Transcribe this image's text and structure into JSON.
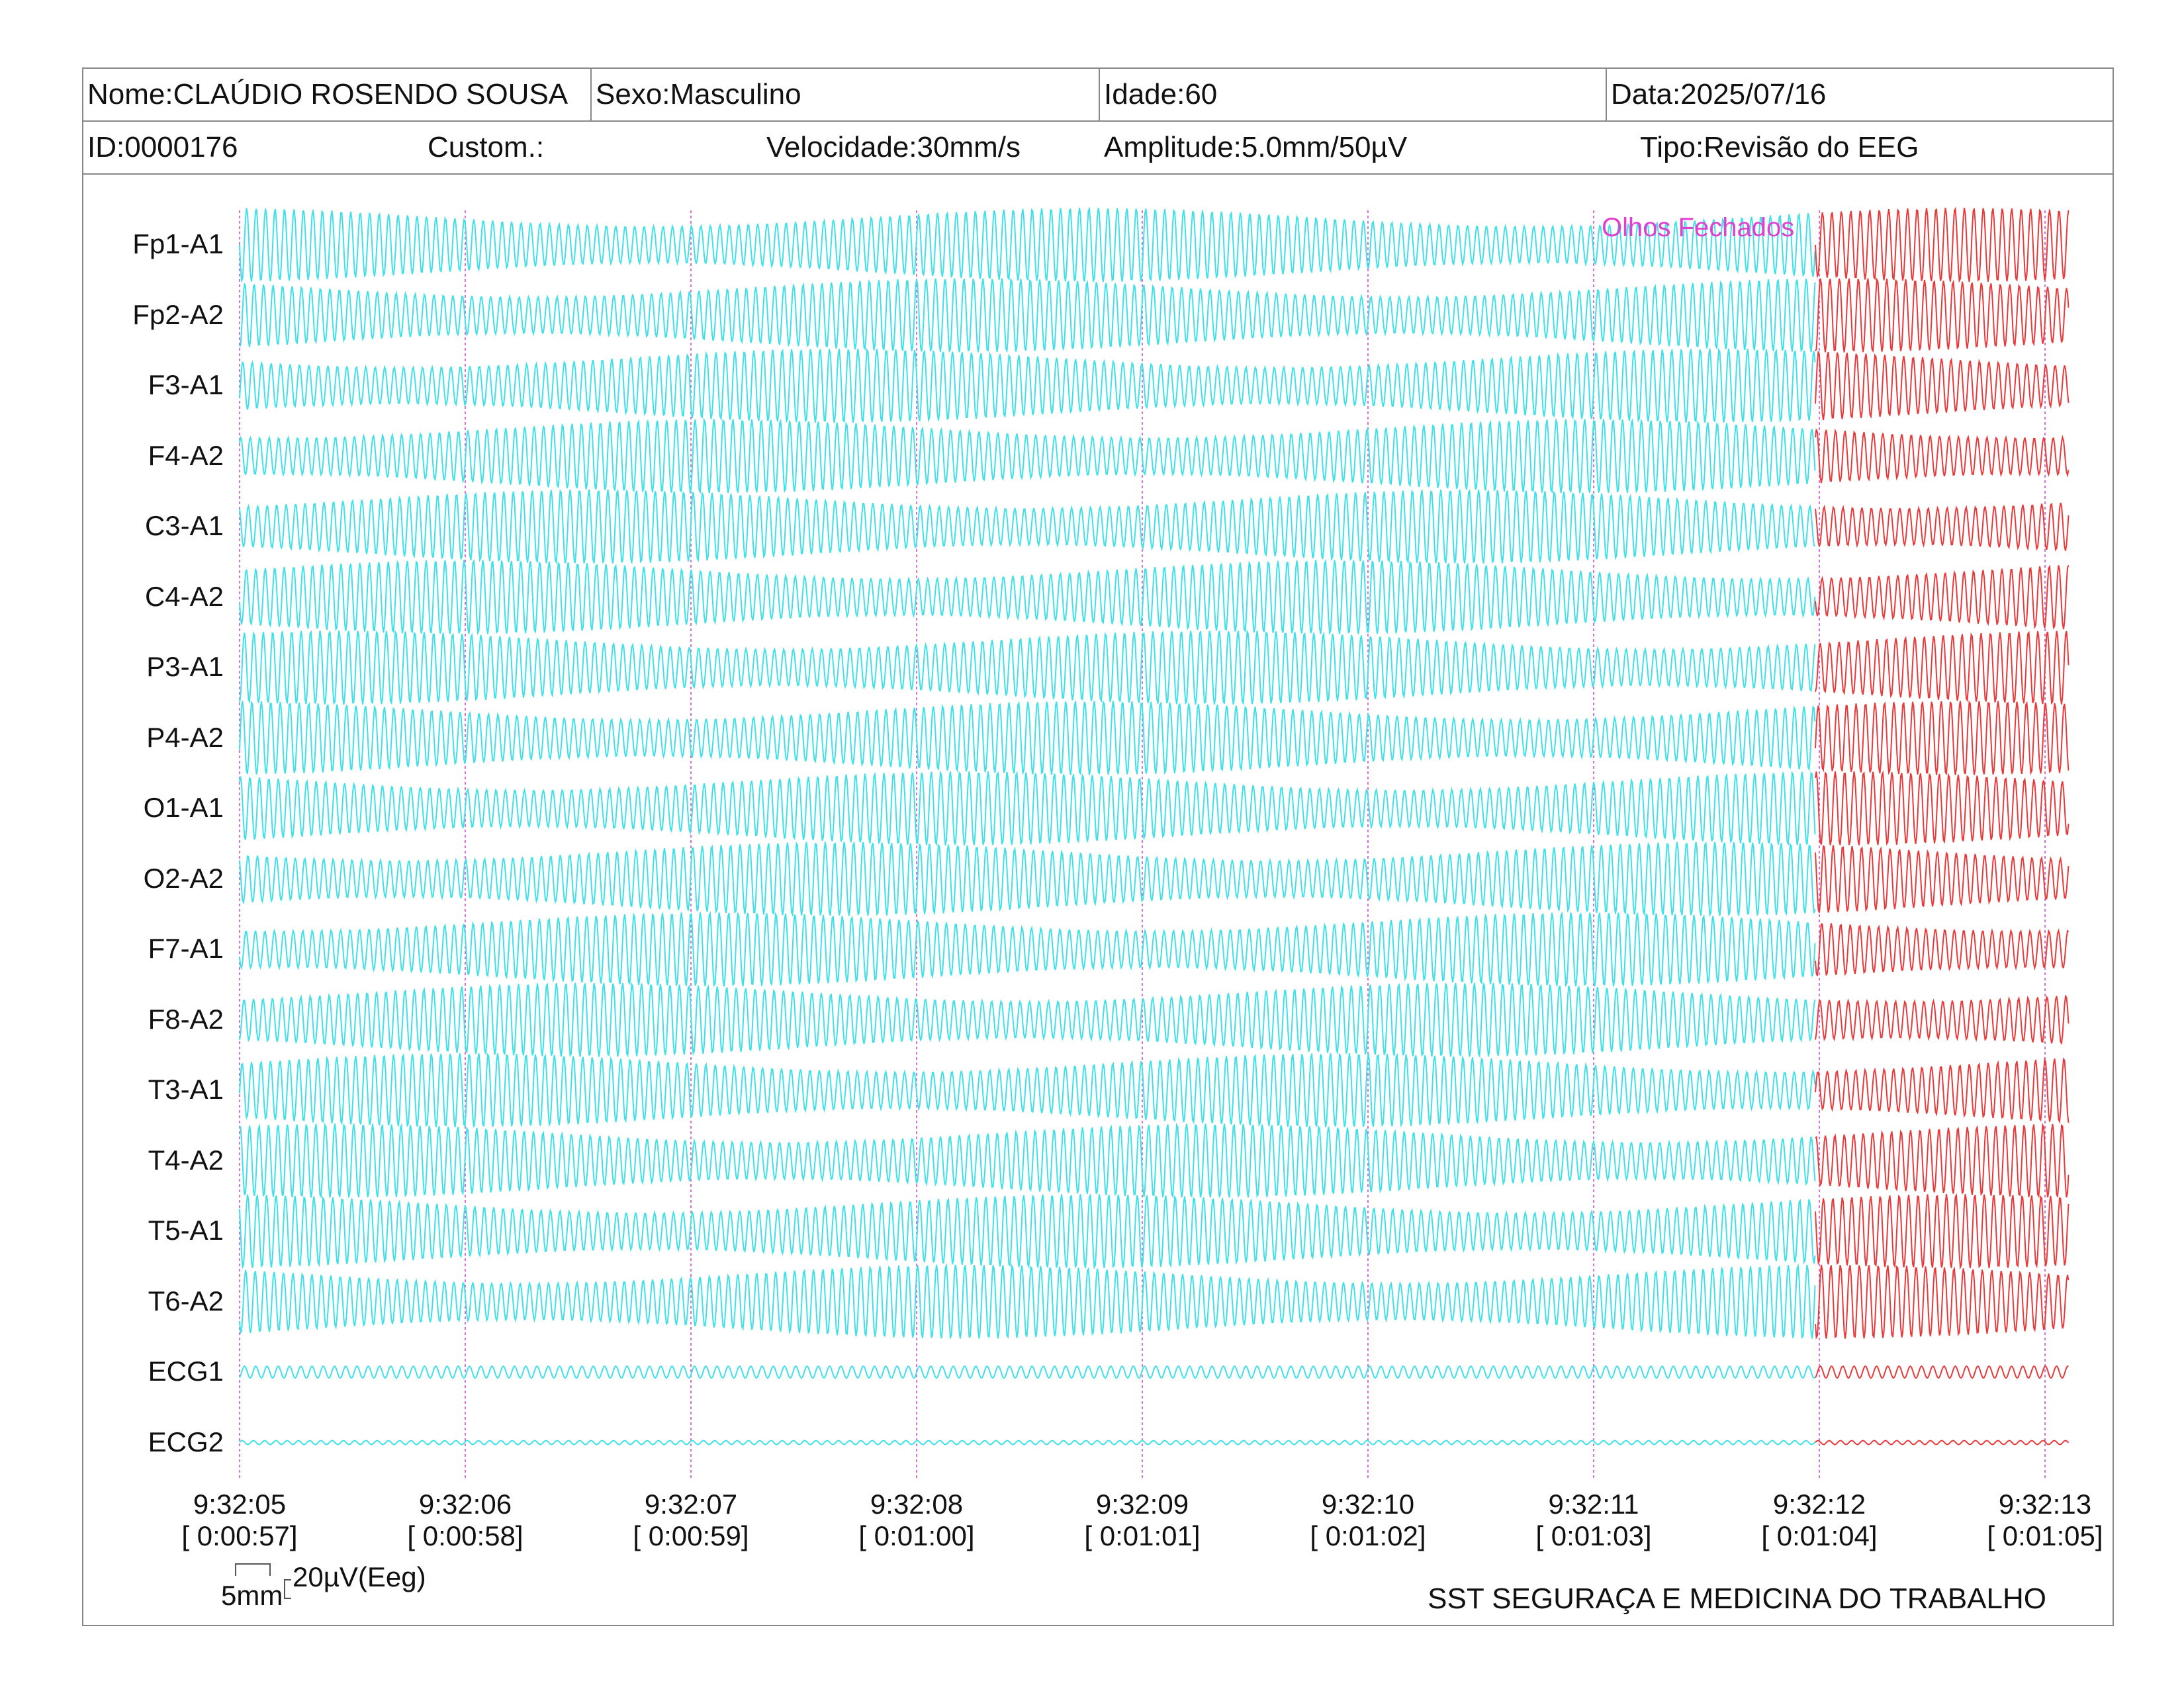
{
  "header": {
    "name": "Nome:CLAÚDIO ROSENDO SOUSA",
    "sex": "Sexo:Masculino",
    "age": "Idade:60",
    "date": "Data:2025/07/16",
    "id": "ID:0000176",
    "custom": "Custom.:",
    "speed": "Velocidade:30mm/s",
    "amplitude": "Amplitude:5.0mm/50µV",
    "type": "Tipo:Revisão do EEG"
  },
  "channels": [
    "Fp1-A1",
    "Fp2-A2",
    "F3-A1",
    "F4-A2",
    "C3-A1",
    "C4-A2",
    "P3-A1",
    "P4-A2",
    "O1-A1",
    "O2-A2",
    "F7-A1",
    "F8-A2",
    "T3-A1",
    "T4-A2",
    "T5-A1",
    "T6-A2",
    "ECG1",
    "ECG2"
  ],
  "time_marks": [
    {
      "clock": "9:32:05",
      "elapsed": "[ 0:00:57]"
    },
    {
      "clock": "9:32:06",
      "elapsed": "[ 0:00:58]"
    },
    {
      "clock": "9:32:07",
      "elapsed": "[ 0:00:59]"
    },
    {
      "clock": "9:32:08",
      "elapsed": "[ 0:01:00]"
    },
    {
      "clock": "9:32:09",
      "elapsed": "[ 0:01:01]"
    },
    {
      "clock": "9:32:10",
      "elapsed": "[ 0:01:02]"
    },
    {
      "clock": "9:32:11",
      "elapsed": "[ 0:01:03]"
    },
    {
      "clock": "9:32:12",
      "elapsed": "[ 0:01:04]"
    },
    {
      "clock": "9:32:13",
      "elapsed": "[ 0:01:05]"
    }
  ],
  "annotation": "Olhos Fechados",
  "annotation_time": "9:32:12",
  "scale": {
    "time": "5mm",
    "amplitude": "20µV(Eeg)"
  },
  "footer": "SST SEGURAÇA E MEDICINA DO TRABALHO",
  "colors": {
    "trace_open": "#40e0e8",
    "trace_closed": "#e83a3a",
    "marker": "#cc44cc",
    "annotation": "#e040d0",
    "border": "#888888"
  }
}
